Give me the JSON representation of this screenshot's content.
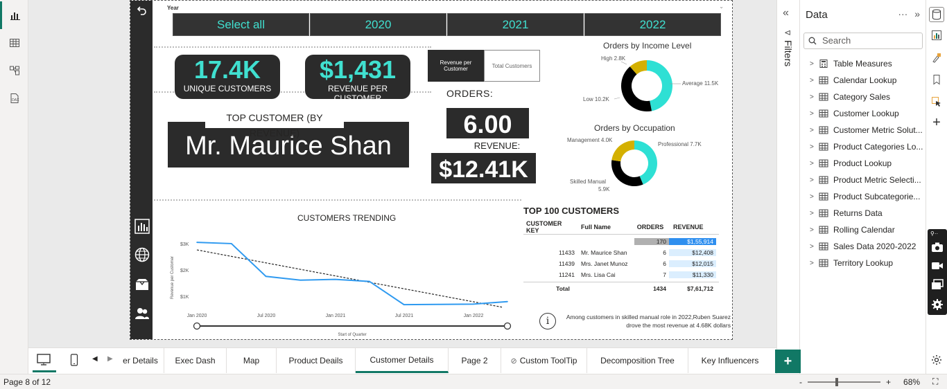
{
  "report": {
    "year_label": "Year",
    "slicer": [
      "Select all",
      "2020",
      "2021",
      "2022"
    ],
    "kpi_customers": {
      "value": "17.4K",
      "label": "UNIQUE CUSTOMERS"
    },
    "kpi_revenue": {
      "value": "$1,431",
      "label": "REVENUE PER CUSTOMER"
    },
    "top_customer_title": "TOP CUSTOMER (BY REVENUE)",
    "top_customer_name": "Mr. Maurice Shan",
    "metric_toggle": {
      "on": "Revenue per Customer",
      "off": "Total Customers"
    },
    "orders_label": "ORDERS:",
    "orders_value": "6.00",
    "revenue_label": "REVENUE:",
    "revenue_value": "$12.41K",
    "income_title": "Orders by Income Level",
    "income_labels": {
      "high": "High 2.8K",
      "average": "Average 11.5K",
      "low": "Low 10.2K"
    },
    "occupation_title": "Orders by Occupation",
    "occupation_labels": {
      "management": "Management 4.0K",
      "professional": "Professional 7.7K",
      "skilled1": "Skilled Manual",
      "skilled2": "5.9K"
    },
    "trend_title": "CUSTOMERS TRENDING",
    "trend_axis": {
      "ylabel": "Revenue per Customer",
      "xlabel": "Start of Quarter",
      "yticks": [
        "$3K",
        "$2K",
        "$1K"
      ],
      "xticks": [
        "Jan 2020",
        "Jul 2020",
        "Jan 2021",
        "Jul 2021",
        "Jan 2022"
      ]
    },
    "table": {
      "title": "TOP 100 CUSTOMERS",
      "headers": [
        "CUSTOMER KEY",
        "Full Name",
        "ORDERS",
        "REVENUE"
      ],
      "highlight_row": {
        "orders": "170",
        "revenue": "$1,55,914"
      },
      "rows": [
        {
          "key": "11433",
          "name": "Mr. Maurice Shan",
          "orders": "6",
          "revenue": "$12,408"
        },
        {
          "key": "11439",
          "name": "Mrs. Janet Munoz",
          "orders": "6",
          "revenue": "$12,015"
        },
        {
          "key": "11241",
          "name": "Mrs. Lisa Cai",
          "orders": "7",
          "revenue": "$11,330"
        }
      ],
      "total": {
        "label": "Total",
        "orders": "1434",
        "revenue": "$7,61,712"
      }
    },
    "insight_line1": "Among customers in skilled manual role in 2022,Ruben Suarez",
    "insight_line2": "drove the most revenue at 4.68K dollars"
  },
  "chart_data": [
    {
      "type": "line",
      "title": "CUSTOMERS TRENDING",
      "xlabel": "Start of Quarter",
      "ylabel": "Revenue per Customer",
      "x": [
        "Jan 2020",
        "Apr 2020",
        "Jul 2020",
        "Oct 2020",
        "Jan 2021",
        "Apr 2021",
        "Jul 2021",
        "Oct 2021",
        "Jan 2022",
        "Apr 2022"
      ],
      "series": [
        {
          "values": [
            3250,
            3200,
            1900,
            1750,
            1780,
            1700,
            780,
            790,
            800,
            900
          ]
        }
      ],
      "trend_line": {
        "start": 2950,
        "end": 680
      },
      "ylim": [
        700,
        3500
      ]
    },
    {
      "type": "pie",
      "title": "Orders by Income Level",
      "categories": [
        "Average",
        "Low",
        "High"
      ],
      "values": [
        11.5,
        10.2,
        2.8
      ],
      "colors": [
        "#2ee0d4",
        "#000000",
        "#d4b000"
      ]
    },
    {
      "type": "pie",
      "title": "Orders by Occupation",
      "categories": [
        "Professional",
        "Skilled Manual",
        "Management"
      ],
      "values": [
        7.7,
        5.9,
        4.0
      ],
      "colors": [
        "#2ee0d4",
        "#000000",
        "#d4b000"
      ]
    }
  ],
  "data_pane": {
    "title": "Data",
    "search_placeholder": "Search",
    "items": [
      "Table Measures",
      "Calendar Lookup",
      "Category Sales",
      "Customer Lookup",
      "Customer Metric Solut...",
      "Product Categories Lo...",
      "Product Lookup",
      "Product Metric Selecti...",
      "Product Subcategorie...",
      "Returns Data",
      "Rolling Calendar",
      "Sales Data 2020-2022",
      "Territory Lookup"
    ]
  },
  "filters_label": "Filters",
  "tabs": [
    "er Details",
    "Exec Dash",
    "Map",
    "Product Deails",
    "Customer Details",
    "Page 2",
    "Custom ToolTip",
    "Decomposition Tree",
    "Key Influencers"
  ],
  "status": {
    "page": "Page 8 of 12",
    "zoom": "68%"
  },
  "colors": {
    "accent": "#117865",
    "turquoise": "#40e0d0",
    "dark": "#2b2b2b"
  }
}
